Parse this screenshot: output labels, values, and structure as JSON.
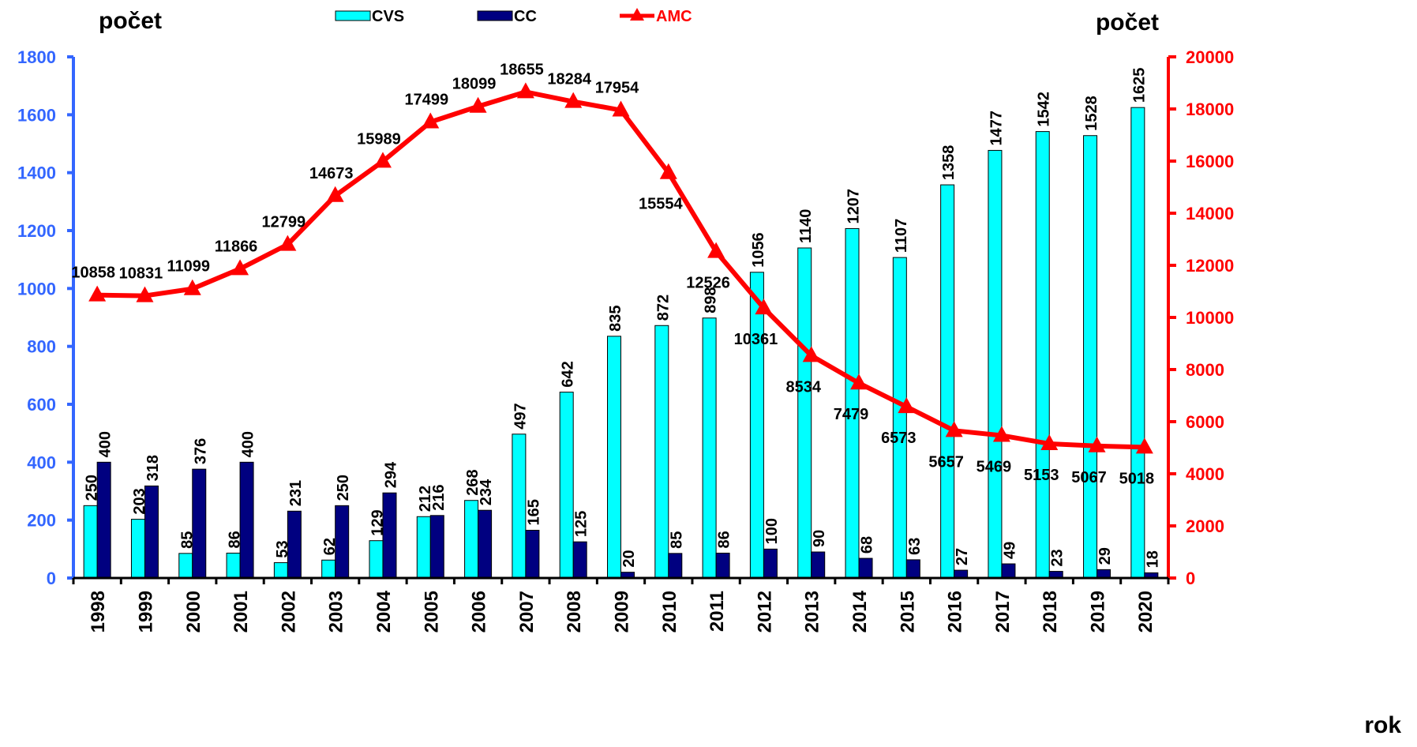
{
  "chart_data": {
    "type": "combo",
    "y_title": "počet",
    "y2_title": "počet",
    "x_title": "rok",
    "categories": [
      "1998",
      "1999",
      "2000",
      "2001",
      "2002",
      "2003",
      "2004",
      "2005",
      "2006",
      "2007",
      "2008",
      "2009",
      "2010",
      "2011",
      "2012",
      "2013",
      "2014",
      "2015",
      "2016",
      "2017",
      "2018",
      "2019",
      "2020"
    ],
    "series": [
      {
        "name": "CVS",
        "type": "bar",
        "color": "#00ffff",
        "values": [
          250,
          203,
          85,
          86,
          53,
          62,
          129,
          212,
          268,
          497,
          642,
          835,
          872,
          898,
          1056,
          1140,
          1207,
          1107,
          1358,
          1477,
          1542,
          1528,
          1625
        ]
      },
      {
        "name": "CC",
        "type": "bar",
        "color": "#000080",
        "values": [
          400,
          318,
          376,
          400,
          231,
          250,
          294,
          216,
          234,
          165,
          125,
          20,
          85,
          86,
          100,
          90,
          68,
          63,
          27,
          49,
          23,
          29,
          18
        ]
      },
      {
        "name": "AMC",
        "type": "line",
        "axis": "y2",
        "color": "#ff0000",
        "values": [
          10858,
          10831,
          11099,
          11866,
          12799,
          14673,
          15989,
          17499,
          18099,
          18655,
          18284,
          17954,
          15554,
          12526,
          10361,
          8534,
          7479,
          6573,
          5657,
          5469,
          5153,
          5067,
          5018
        ]
      }
    ],
    "ylim": [
      0,
      1800
    ],
    "yticks": [
      0,
      200,
      400,
      600,
      800,
      1000,
      1200,
      1400,
      1600,
      1800
    ],
    "ycolor": "#3366ff",
    "y2lim": [
      0,
      20000
    ],
    "y2ticks": [
      0,
      2000,
      4000,
      6000,
      8000,
      10000,
      12000,
      14000,
      16000,
      18000,
      20000
    ],
    "y2color": "#ff0000",
    "legend": "top"
  }
}
